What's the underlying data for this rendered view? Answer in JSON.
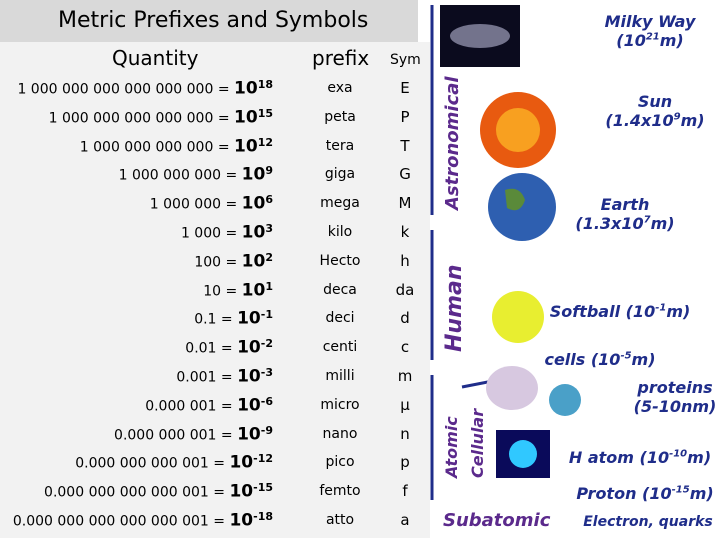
{
  "title": "Metric Prefixes and Symbols",
  "headers": {
    "quantity": "Quantity",
    "prefix": "prefix",
    "symbol": "Sym"
  },
  "rows": [
    {
      "quantity": "1 000 000 000 000 000 000 =",
      "base": "10",
      "exp": "18",
      "prefix": "exa",
      "symbol": "E"
    },
    {
      "quantity": "1 000 000 000 000 000 =",
      "base": "10",
      "exp": "15",
      "prefix": "peta",
      "symbol": "P"
    },
    {
      "quantity": "1 000 000 000 000 =",
      "base": "10",
      "exp": "12",
      "prefix": "tera",
      "symbol": "T"
    },
    {
      "quantity": "1 000 000 000 =",
      "base": "10",
      "exp": "9",
      "prefix": "giga",
      "symbol": "G"
    },
    {
      "quantity": "1 000 000 =",
      "base": "10",
      "exp": "6",
      "prefix": "mega",
      "symbol": "M"
    },
    {
      "quantity": "1 000 =",
      "base": "10",
      "exp": "3",
      "prefix": "kilo",
      "symbol": "k"
    },
    {
      "quantity": "100 =",
      "base": "10",
      "exp": "2",
      "prefix": "Hecto",
      "symbol": "h"
    },
    {
      "quantity": "10 =",
      "base": "10",
      "exp": "1",
      "prefix": "deca",
      "symbol": "da"
    },
    {
      "quantity": "0.1 =",
      "base": "10",
      "exp": "-1",
      "prefix": "deci",
      "symbol": "d"
    },
    {
      "quantity": "0.01 =",
      "base": "10",
      "exp": "-2",
      "prefix": "centi",
      "symbol": "c"
    },
    {
      "quantity": "0.001 =",
      "base": "10",
      "exp": "-3",
      "prefix": "milli",
      "symbol": "m"
    },
    {
      "quantity": "0.000 001 =",
      "base": "10",
      "exp": "-6",
      "prefix": "micro",
      "symbol": "µ"
    },
    {
      "quantity": "0.000 000 001 =",
      "base": "10",
      "exp": "-9",
      "prefix": "nano",
      "symbol": "n"
    },
    {
      "quantity": "0.000 000 000 001 =",
      "base": "10",
      "exp": "-12",
      "prefix": "pico",
      "symbol": "p"
    },
    {
      "quantity": "0.000 000 000 000 001 =",
      "base": "10",
      "exp": "-15",
      "prefix": "femto",
      "symbol": "f"
    },
    {
      "quantity": "0.000 000 000 000 000 001 =",
      "base": "10",
      "exp": "-18",
      "prefix": "atto",
      "symbol": "a"
    }
  ],
  "scales": [
    "Astronomical",
    "Human",
    "Atomic",
    "Cellular",
    "Subatomic"
  ],
  "objects": [
    {
      "pre": "Milky Way",
      "line2": "(10",
      "sup": "21",
      "post": "m)"
    },
    {
      "pre": "Sun",
      "line2": "(1.4x10",
      "sup": "9",
      "post": "m)"
    },
    {
      "pre": "Earth",
      "line2": "(1.3x10",
      "sup": "7",
      "post": "m)"
    },
    {
      "pre": "Softball (10",
      "sup": "-1",
      "post": "m)"
    },
    {
      "pre": "cells (10",
      "sup": "-5",
      "post": "m)"
    },
    {
      "pre": "proteins",
      "line2": "(5-10nm)"
    },
    {
      "pre": "H atom (10",
      "sup": "-10",
      "post": "m)"
    },
    {
      "pre": "Proton (10",
      "sup": "-15",
      "post": "m)"
    },
    {
      "pre": "Electron, quarks"
    }
  ]
}
